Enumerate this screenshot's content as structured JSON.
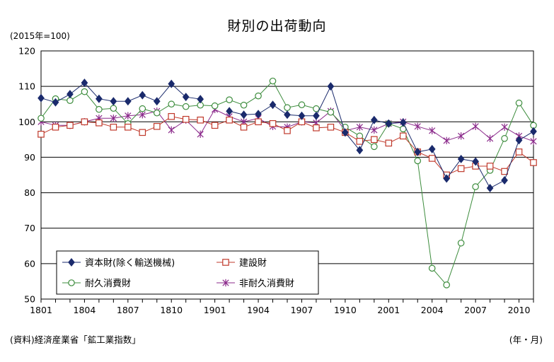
{
  "chart_data": {
    "type": "line",
    "title": "財別の出荷動向",
    "unit_label": "(2015年=100)",
    "source_note": "(資料)経済産業省「鉱工業指数」",
    "x_unit_label": "(年・月)",
    "ylim": [
      50,
      120
    ],
    "y_ticks": [
      "50",
      "60",
      "70",
      "80",
      "90",
      "100",
      "110",
      "120"
    ],
    "x_tick_labels": [
      "1801",
      "1804",
      "1807",
      "1810",
      "1901",
      "1904",
      "1907",
      "1910",
      "2001",
      "2004",
      "2007",
      "2010"
    ],
    "x": [
      "1801",
      "1802",
      "1803",
      "1804",
      "1805",
      "1806",
      "1807",
      "1808",
      "1809",
      "1810",
      "1811",
      "1812",
      "1901",
      "1902",
      "1903",
      "1904",
      "1905",
      "1906",
      "1907",
      "1908",
      "1909",
      "1910",
      "1911",
      "1912",
      "2001",
      "2002",
      "2003",
      "2004",
      "2005",
      "2006",
      "2007",
      "2008",
      "2009",
      "2010",
      "2011"
    ],
    "grid": "horizontal",
    "legend_position": "bottom-left",
    "series": [
      {
        "name": "資本財(除く輸送機械)",
        "color": "#1a2a6c",
        "marker": "diamond",
        "values": [
          106.7,
          105.5,
          107.8,
          111.0,
          106.5,
          105.8,
          105.8,
          107.5,
          105.8,
          110.7,
          107.0,
          106.4,
          null,
          103.0,
          102.0,
          102.2,
          104.8,
          102.0,
          101.7,
          101.7,
          110.0,
          97.0,
          92.0,
          100.5,
          99.5,
          99.8,
          91.5,
          92.3,
          84.0,
          89.5,
          88.8,
          81.3,
          83.5,
          94.8,
          97.3
        ]
      },
      {
        "name": "建設財",
        "color": "#c0392b",
        "marker": "square",
        "values": [
          96.5,
          98.5,
          99.0,
          100.0,
          99.7,
          98.5,
          98.5,
          97.0,
          98.7,
          101.5,
          100.7,
          100.5,
          99.0,
          100.5,
          98.5,
          100.0,
          99.5,
          97.5,
          100.0,
          98.3,
          98.5,
          97.0,
          94.5,
          95.0,
          94.0,
          96.0,
          91.5,
          89.7,
          85.0,
          86.8,
          87.5,
          87.5,
          86.0,
          91.5,
          88.5
        ]
      },
      {
        "name": "耐久消費財",
        "color": "#3c8c3c",
        "marker": "circle",
        "values": [
          101.0,
          106.5,
          106.0,
          108.5,
          103.5,
          103.8,
          99.5,
          103.7,
          102.5,
          105.0,
          104.3,
          104.7,
          104.5,
          106.2,
          104.7,
          107.3,
          111.5,
          104.0,
          104.8,
          103.7,
          102.7,
          98.5,
          96.0,
          93.0,
          99.5,
          98.0,
          89.0,
          58.7,
          54.0,
          65.8,
          81.7,
          86.3,
          95.3,
          105.3,
          99.0
        ]
      },
      {
        "name": "非耐久消費財",
        "color": "#8b2a8b",
        "marker": "star",
        "values": [
          100.0,
          99.0,
          99.0,
          100.0,
          101.0,
          101.0,
          101.7,
          102.0,
          103.0,
          97.7,
          100.5,
          96.5,
          103.5,
          101.5,
          100.0,
          101.0,
          98.7,
          98.5,
          100.0,
          99.7,
          103.0,
          97.5,
          98.5,
          97.7,
          99.5,
          100.0,
          98.7,
          97.5,
          94.7,
          96.0,
          98.7,
          95.3,
          98.5,
          96.0,
          94.5
        ]
      }
    ]
  }
}
